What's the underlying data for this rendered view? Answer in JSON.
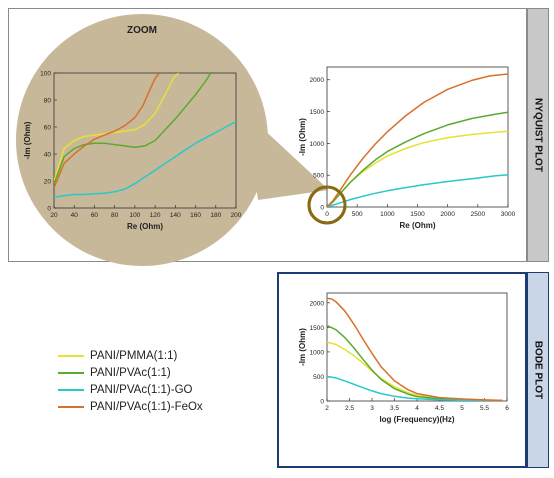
{
  "colors": {
    "zoom_fill": "#c8b89a",
    "zoom_ring": "#8b6914",
    "top_tab": "#c8c8c8",
    "bottom_border": "#1f3b73",
    "bottom_tab": "#c9d6e8"
  },
  "labels": {
    "zoom_title": "ZOOM",
    "nyquist_tab": "NYQUIST PLOT",
    "bode_tab": "BODE PLOT"
  },
  "legend": [
    {
      "label": "PANI/PMMA(1:1)",
      "color": "#e8e034"
    },
    {
      "label": "PANI/PVAc(1:1)",
      "color": "#5aaa2e"
    },
    {
      "label": "PANI/PVAc(1:1)-GO",
      "color": "#28c8c8"
    },
    {
      "label": "PANI/PVAc(1:1)-FeOx",
      "color": "#d8702a"
    }
  ],
  "chart_data": [
    {
      "id": "zoom",
      "type": "line",
      "xlabel": "Re (Ohm)",
      "ylabel": "-Im (Ohm)",
      "xlim": [
        20,
        200
      ],
      "ylim": [
        0,
        100
      ],
      "xticks": [
        20,
        40,
        60,
        80,
        100,
        120,
        140,
        160,
        180,
        200
      ],
      "yticks": [
        0,
        20,
        40,
        60,
        80,
        100
      ],
      "series": [
        {
          "name": "PANI/PMMA(1:1)",
          "color": "#e8e034",
          "x": [
            20,
            25,
            30,
            40,
            50,
            60,
            70,
            80,
            90,
            100,
            110,
            120,
            130,
            138,
            143
          ],
          "y": [
            20,
            32,
            44,
            50,
            53,
            54,
            55,
            56,
            57,
            58,
            62,
            70,
            84,
            96,
            100
          ]
        },
        {
          "name": "PANI/PVAc(1:1)",
          "color": "#5aaa2e",
          "x": [
            20,
            25,
            30,
            40,
            50,
            60,
            70,
            80,
            90,
            100,
            110,
            120,
            130,
            140,
            150,
            160,
            170,
            175
          ],
          "y": [
            18,
            28,
            38,
            44,
            47,
            48,
            48,
            47,
            46,
            45,
            46,
            50,
            58,
            66,
            75,
            84,
            94,
            100
          ]
        },
        {
          "name": "PANI/PVAc(1:1)-GO",
          "color": "#28c8c8",
          "x": [
            20,
            30,
            40,
            50,
            60,
            70,
            80,
            90,
            100,
            110,
            120,
            130,
            140,
            150,
            160,
            170,
            180,
            190,
            200
          ],
          "y": [
            8,
            9,
            10,
            10,
            10.5,
            11,
            12,
            14,
            18,
            23,
            28,
            33,
            38,
            43,
            48,
            52,
            56,
            60,
            64
          ]
        },
        {
          "name": "PANI/PVAc(1:1)-FeOx",
          "color": "#d8702a",
          "x": [
            20,
            25,
            30,
            40,
            50,
            60,
            70,
            80,
            90,
            100,
            108,
            115,
            120,
            124
          ],
          "y": [
            15,
            24,
            33,
            40,
            46,
            51,
            54,
            57,
            61,
            67,
            76,
            88,
            96,
            100
          ]
        }
      ]
    },
    {
      "id": "nyquist",
      "type": "line",
      "xlabel": "Re (Ohm)",
      "ylabel": "-Im (Ohm)",
      "xlim": [
        0,
        3000
      ],
      "ylim": [
        0,
        2200
      ],
      "xticks": [
        0,
        500,
        1000,
        1500,
        2000,
        2500,
        3000
      ],
      "yticks": [
        0,
        500,
        1000,
        1500,
        2000
      ],
      "series": [
        {
          "name": "PANI/PMMA(1:1)",
          "color": "#e8e034",
          "x": [
            0,
            100,
            200,
            400,
            600,
            800,
            1000,
            1300,
            1600,
            2000,
            2400,
            2800,
            3000
          ],
          "y": [
            0,
            90,
            200,
            400,
            560,
            690,
            800,
            920,
            1010,
            1090,
            1140,
            1175,
            1190
          ]
        },
        {
          "name": "PANI/PVAc(1:1)",
          "color": "#5aaa2e",
          "x": [
            0,
            100,
            200,
            400,
            600,
            800,
            1000,
            1300,
            1600,
            2000,
            2400,
            2800,
            3000
          ],
          "y": [
            0,
            80,
            190,
            400,
            580,
            740,
            870,
            1020,
            1150,
            1290,
            1390,
            1460,
            1490
          ]
        },
        {
          "name": "PANI/PVAc(1:1)-GO",
          "color": "#28c8c8",
          "x": [
            0,
            100,
            200,
            400,
            600,
            800,
            1000,
            1300,
            1600,
            2000,
            2400,
            2800,
            3000
          ],
          "y": [
            0,
            30,
            60,
            120,
            170,
            215,
            255,
            305,
            350,
            400,
            445,
            490,
            505
          ]
        },
        {
          "name": "PANI/PVAc(1:1)-FeOx",
          "color": "#d8702a",
          "x": [
            0,
            100,
            200,
            400,
            600,
            800,
            1000,
            1300,
            1600,
            2000,
            2400,
            2700,
            3000
          ],
          "y": [
            0,
            100,
            240,
            520,
            770,
            990,
            1180,
            1430,
            1640,
            1850,
            1990,
            2060,
            2090
          ]
        }
      ]
    },
    {
      "id": "bode",
      "type": "line",
      "xlabel": "log (Frequency)(Hz)",
      "ylabel": "-Im (Ohm)",
      "xlim": [
        2,
        6
      ],
      "ylim": [
        0,
        2200
      ],
      "xticks": [
        "2",
        "2.5",
        "3",
        "3.5",
        "4",
        "4.5",
        "5",
        "5.5",
        "6"
      ],
      "yticks": [
        0,
        500,
        1000,
        1500,
        2000
      ],
      "series": [
        {
          "name": "PANI/PMMA(1:1)",
          "color": "#e8e034",
          "x": [
            2,
            2.2,
            2.4,
            2.6,
            2.8,
            3.0,
            3.2,
            3.5,
            3.8,
            4.0,
            4.5,
            5.0,
            5.5,
            5.9
          ],
          "y": [
            1200,
            1150,
            1050,
            920,
            770,
            610,
            460,
            290,
            170,
            115,
            60,
            35,
            20,
            10
          ]
        },
        {
          "name": "PANI/PVAc(1:1)",
          "color": "#5aaa2e",
          "x": [
            2,
            2.2,
            2.4,
            2.6,
            2.8,
            3.0,
            3.2,
            3.5,
            3.8,
            4.0,
            4.5,
            5.0,
            5.5,
            5.9
          ],
          "y": [
            1540,
            1450,
            1290,
            1080,
            850,
            630,
            440,
            250,
            140,
            90,
            45,
            28,
            15,
            8
          ]
        },
        {
          "name": "PANI/PVAc(1:1)-GO",
          "color": "#28c8c8",
          "x": [
            2,
            2.2,
            2.4,
            2.6,
            2.8,
            3.0,
            3.2,
            3.5,
            3.8,
            4.0,
            4.5,
            5.0,
            5.5,
            5.9
          ],
          "y": [
            500,
            470,
            410,
            340,
            270,
            205,
            150,
            95,
            60,
            45,
            25,
            15,
            8,
            4
          ]
        },
        {
          "name": "PANI/PVAc(1:1)-FeOx",
          "color": "#d8702a",
          "x": [
            2,
            2.1,
            2.2,
            2.4,
            2.6,
            2.8,
            3.0,
            3.2,
            3.5,
            3.8,
            4.0,
            4.5,
            5.0,
            5.5,
            5.9
          ],
          "y": [
            2090,
            2080,
            2020,
            1830,
            1560,
            1260,
            970,
            700,
            410,
            230,
            150,
            70,
            40,
            22,
            12
          ]
        }
      ]
    }
  ]
}
